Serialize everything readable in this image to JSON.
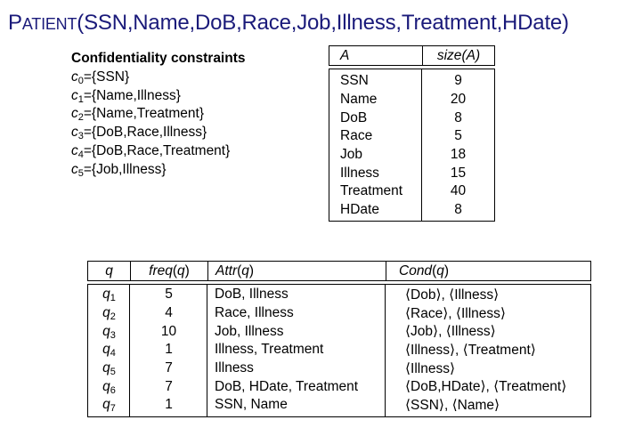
{
  "title": {
    "relation_first": "P",
    "relation_rest": "ATIENT",
    "attributes": "(SSN,Name,DoB,Race,Job,Illness,Treatment,HDate)"
  },
  "constraints": {
    "heading": "Confidentiality constraints",
    "items": [
      {
        "var": "c",
        "sub": "0",
        "set": "={SSN}"
      },
      {
        "var": "c",
        "sub": "1",
        "set": "={Name,Illness}"
      },
      {
        "var": "c",
        "sub": "2",
        "set": "={Name,Treatment}"
      },
      {
        "var": "c",
        "sub": "3",
        "set": "={DoB,Race,Illness}"
      },
      {
        "var": "c",
        "sub": "4",
        "set": "={DoB,Race,Treatment}"
      },
      {
        "var": "c",
        "sub": "5",
        "set": "={Job,Illness}"
      }
    ]
  },
  "attr_table": {
    "headers": {
      "a": "A",
      "size": "size(A)"
    },
    "rows": [
      {
        "a": "SSN",
        "size": "9"
      },
      {
        "a": "Name",
        "size": "20"
      },
      {
        "a": "DoB",
        "size": "8"
      },
      {
        "a": "Race",
        "size": "5"
      },
      {
        "a": "Job",
        "size": "18"
      },
      {
        "a": "Illness",
        "size": "15"
      },
      {
        "a": "Treatment",
        "size": "40"
      },
      {
        "a": "HDate",
        "size": "8"
      }
    ]
  },
  "query_table": {
    "headers": {
      "q": "q",
      "freq": "freq(q)",
      "attr": "Attr(q)",
      "cond": "Cond(q)"
    },
    "rows": [
      {
        "q": "q",
        "sub": "1",
        "freq": "5",
        "attr": "DoB, Illness",
        "cond": "⟨Dob⟩, ⟨Illness⟩"
      },
      {
        "q": "q",
        "sub": "2",
        "freq": "4",
        "attr": "Race, Illness",
        "cond": "⟨Race⟩, ⟨Illness⟩"
      },
      {
        "q": "q",
        "sub": "3",
        "freq": "10",
        "attr": "Job, Illness",
        "cond": "⟨Job⟩, ⟨Illness⟩"
      },
      {
        "q": "q",
        "sub": "4",
        "freq": "1",
        "attr": "Illness, Treatment",
        "cond": "⟨Illness⟩, ⟨Treatment⟩"
      },
      {
        "q": "q",
        "sub": "5",
        "freq": "7",
        "attr": "Illness",
        "cond": "⟨Illness⟩"
      },
      {
        "q": "q",
        "sub": "6",
        "freq": "7",
        "attr": "DoB, HDate, Treatment",
        "cond": "⟨DoB,HDate⟩, ⟨Treatment⟩"
      },
      {
        "q": "q",
        "sub": "7",
        "freq": "1",
        "attr": "SSN, Name",
        "cond": "⟨SSN⟩, ⟨Name⟩"
      }
    ]
  },
  "colors": {
    "title": "#1a1a7a",
    "text": "#000000"
  }
}
